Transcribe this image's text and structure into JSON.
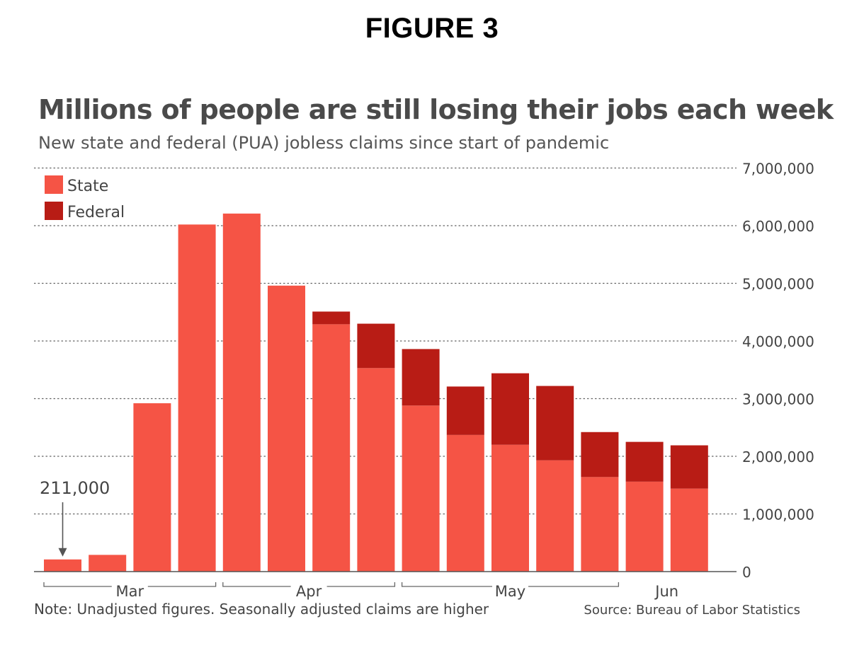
{
  "figure_label": "FIGURE 3",
  "chart_data": {
    "type": "bar",
    "stacked": true,
    "title": "Millions of people are still losing their jobs each week",
    "subtitle": "New state and federal (PUA) jobless claims since start of pandemic",
    "xlabel": "",
    "ylabel": "",
    "ylim": [
      0,
      7000000
    ],
    "yticks": [
      "0",
      "1,000,000",
      "2,000,000",
      "3,000,000",
      "4,000,000",
      "5,000,000",
      "6,000,000",
      "7,000,000"
    ],
    "grid": true,
    "legend_position": "top-left",
    "months": [
      {
        "label": "Mar",
        "first_bar": 0,
        "last_bar": 3
      },
      {
        "label": "Apr",
        "first_bar": 4,
        "last_bar": 7
      },
      {
        "label": "May",
        "first_bar": 8,
        "last_bar": 12
      },
      {
        "label": "Jun",
        "first_bar": 13,
        "last_bar": 14
      }
    ],
    "series": [
      {
        "name": "State",
        "color": "#f55445",
        "values": [
          211000,
          290000,
          2920000,
          6020000,
          6210000,
          4960000,
          4290000,
          3530000,
          2880000,
          2370000,
          2200000,
          1930000,
          1640000,
          1560000,
          1440000
        ]
      },
      {
        "name": "Federal",
        "color": "#b81c15",
        "values": [
          0,
          0,
          0,
          0,
          0,
          0,
          220000,
          770000,
          980000,
          840000,
          1240000,
          1290000,
          780000,
          690000,
          750000
        ]
      }
    ],
    "annotation": {
      "text": "211,000",
      "bar_index": 0
    },
    "note": "Note: Unadjusted figures. Seasonally adjusted claims are higher",
    "source": "Source: Bureau of Labor Statistics"
  }
}
